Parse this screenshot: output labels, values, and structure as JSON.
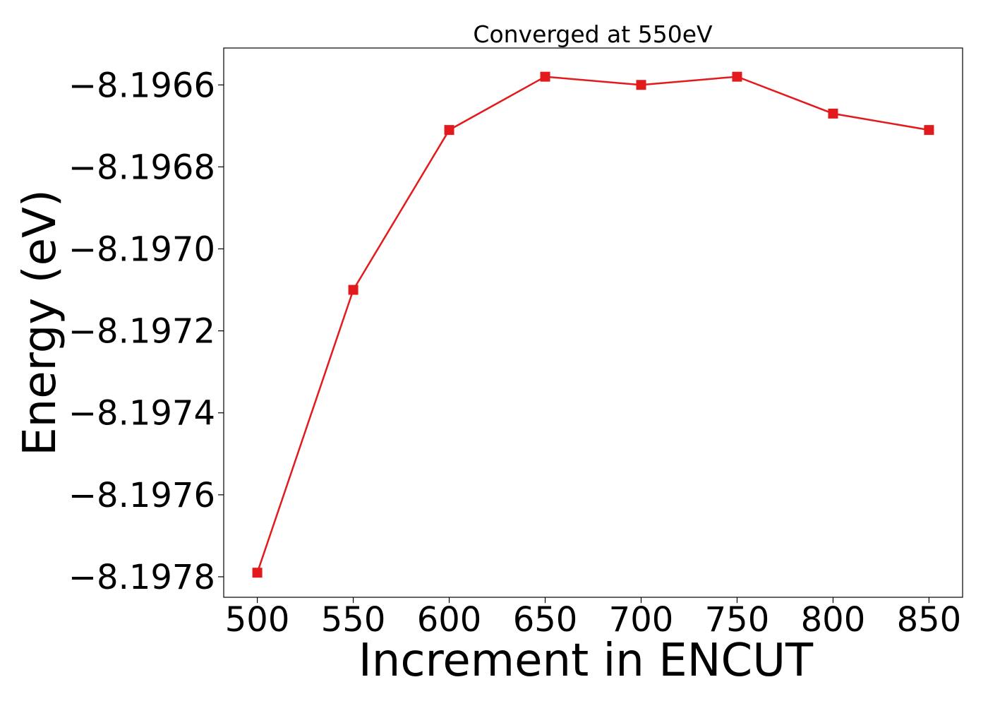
{
  "chart_data": {
    "type": "line",
    "title": "Converged at 550eV",
    "xlabel": "Increment in ENCUT",
    "ylabel": "Energy (eV)",
    "x": [
      500,
      550,
      600,
      650,
      700,
      750,
      800,
      850
    ],
    "series": [
      {
        "values": [
          -8.19779,
          -8.1971,
          -8.19671,
          -8.19658,
          -8.1966,
          -8.19658,
          -8.19667,
          -8.19671
        ],
        "color": "#e31a1c",
        "marker": "square"
      }
    ],
    "xticks": [
      500,
      550,
      600,
      650,
      700,
      750,
      800,
      850
    ],
    "xtick_labels": [
      "500",
      "550",
      "600",
      "650",
      "700",
      "750",
      "800",
      "850"
    ],
    "yticks": [
      -8.1978,
      -8.1976,
      -8.1974,
      -8.1972,
      -8.197,
      -8.1968,
      -8.1966
    ],
    "ytick_labels": [
      "−8.1978",
      "−8.1976",
      "−8.1974",
      "−8.1972",
      "−8.1970",
      "−8.1968",
      "−8.1966"
    ],
    "xlim": [
      482.5,
      867.5
    ],
    "ylim": [
      -8.19785,
      -8.19651
    ],
    "grid": false,
    "legend": "none"
  }
}
